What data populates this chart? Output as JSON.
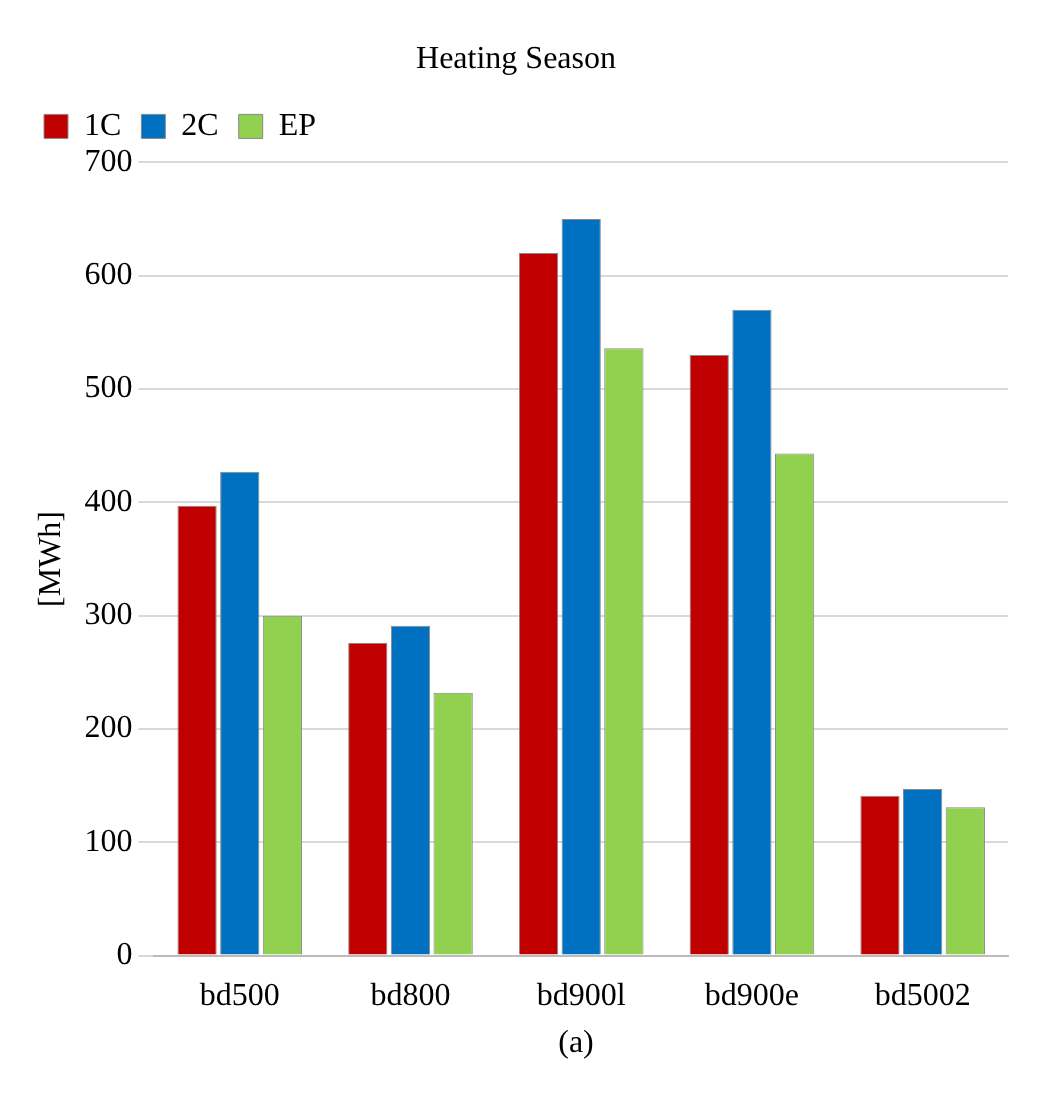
{
  "chart_data": {
    "type": "bar",
    "title": "Heating Season",
    "ylabel": "[MWh]",
    "annotations": [
      "(a)"
    ],
    "categories": [
      "bd500",
      "bd800",
      "bd900l",
      "bd900e",
      "bd5002"
    ],
    "series": [
      {
        "name": "1C",
        "color": "#c00000",
        "values": [
          397,
          276,
          620,
          530,
          141
        ]
      },
      {
        "name": "2C",
        "color": "#0070c0",
        "values": [
          427,
          291,
          650,
          570,
          147
        ]
      },
      {
        "name": "EP",
        "color": "#92d050",
        "values": [
          300,
          232,
          536,
          443,
          131
        ]
      }
    ],
    "ylim": [
      0,
      700
    ],
    "yticks": [
      0,
      100,
      200,
      300,
      400,
      500,
      600,
      700
    ],
    "grid": "y",
    "legend": "top left"
  }
}
